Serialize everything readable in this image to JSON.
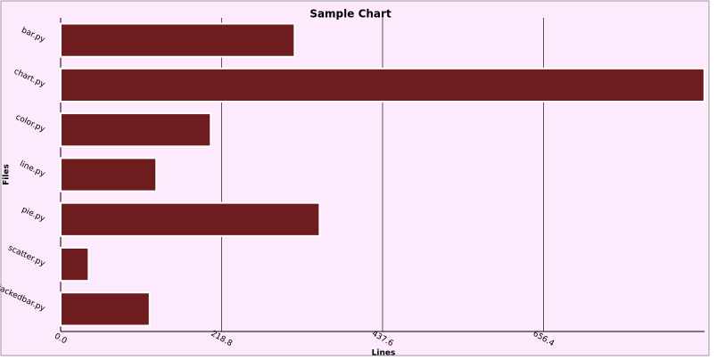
{
  "chart_data": {
    "type": "barh",
    "title": "Sample Chart",
    "x_label": "Lines",
    "y_label": "Files",
    "categories": [
      "bar.py",
      "chart.py",
      "color.py",
      "line.py",
      "pie.py",
      "scatter.py",
      "stackedbar.py"
    ],
    "values": [
      318,
      875,
      204,
      130,
      352,
      38,
      121
    ],
    "color": "#6e1c1e",
    "xlim": [
      0,
      875.2
    ],
    "xticks": [
      {
        "value": 0,
        "label": "0.0"
      },
      218.8,
      437.6,
      656.4
    ],
    "grid": true
  }
}
